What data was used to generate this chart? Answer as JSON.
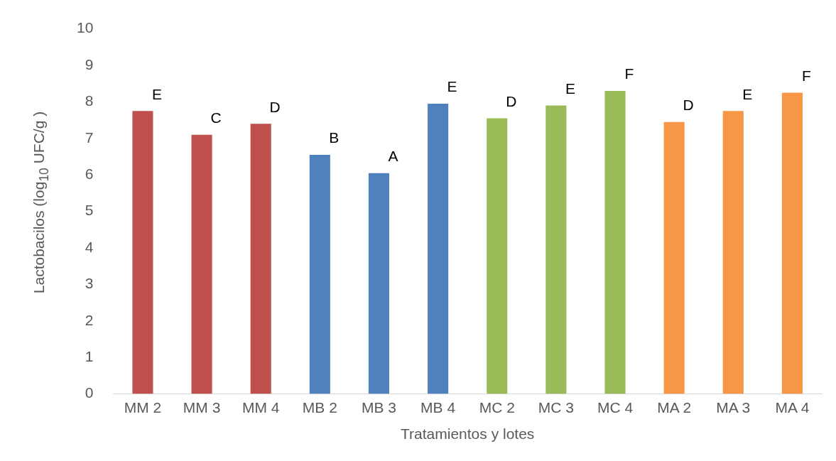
{
  "chart_data": {
    "type": "bar",
    "xlabel": "Tratamientos y lotes",
    "ylabel": "Lactobacilos (log$_{10}$ UFC/g )",
    "categories": [
      "MM 2",
      "MM 3",
      "MM 4",
      "MB 2",
      "MB 3",
      "MB 4",
      "MC 2",
      "MC 3",
      "MC 4",
      "MA 2",
      "MA 3",
      "MA 4"
    ],
    "values": [
      7.75,
      7.1,
      7.4,
      6.55,
      6.05,
      7.95,
      7.55,
      7.9,
      8.3,
      7.45,
      7.75,
      8.25
    ],
    "colors": [
      "#c0504d",
      "#c0504d",
      "#c0504d",
      "#4f81bd",
      "#4f81bd",
      "#4f81bd",
      "#9bbb59",
      "#9bbb59",
      "#9bbb59",
      "#f79646",
      "#f79646",
      "#f79646"
    ],
    "ylim": [
      0,
      10
    ],
    "yticks": [
      0,
      1,
      2,
      3,
      4,
      5,
      6,
      7,
      8,
      9,
      10
    ],
    "grid": false,
    "legend": false,
    "annotations": [
      {
        "text": "E",
        "x": "MM 2",
        "y": 7.75
      },
      {
        "text": "C",
        "x": "MM 3",
        "y": 7.1
      },
      {
        "text": "D",
        "x": "MM 4",
        "y": 7.4
      },
      {
        "text": "B",
        "x": "MB 2",
        "y": 6.55
      },
      {
        "text": "A",
        "x": "MB 3",
        "y": 6.05
      },
      {
        "text": "E",
        "x": "MB 4",
        "y": 7.95
      },
      {
        "text": "D",
        "x": "MC 2",
        "y": 7.55
      },
      {
        "text": "E",
        "x": "MC 3",
        "y": 7.9
      },
      {
        "text": "F",
        "x": "MC 4",
        "y": 8.3
      },
      {
        "text": "D",
        "x": "MA 2",
        "y": 7.45
      },
      {
        "text": "E",
        "x": "MA 3",
        "y": 7.75
      },
      {
        "text": "F",
        "x": "MA 4",
        "y": 8.25
      }
    ]
  }
}
